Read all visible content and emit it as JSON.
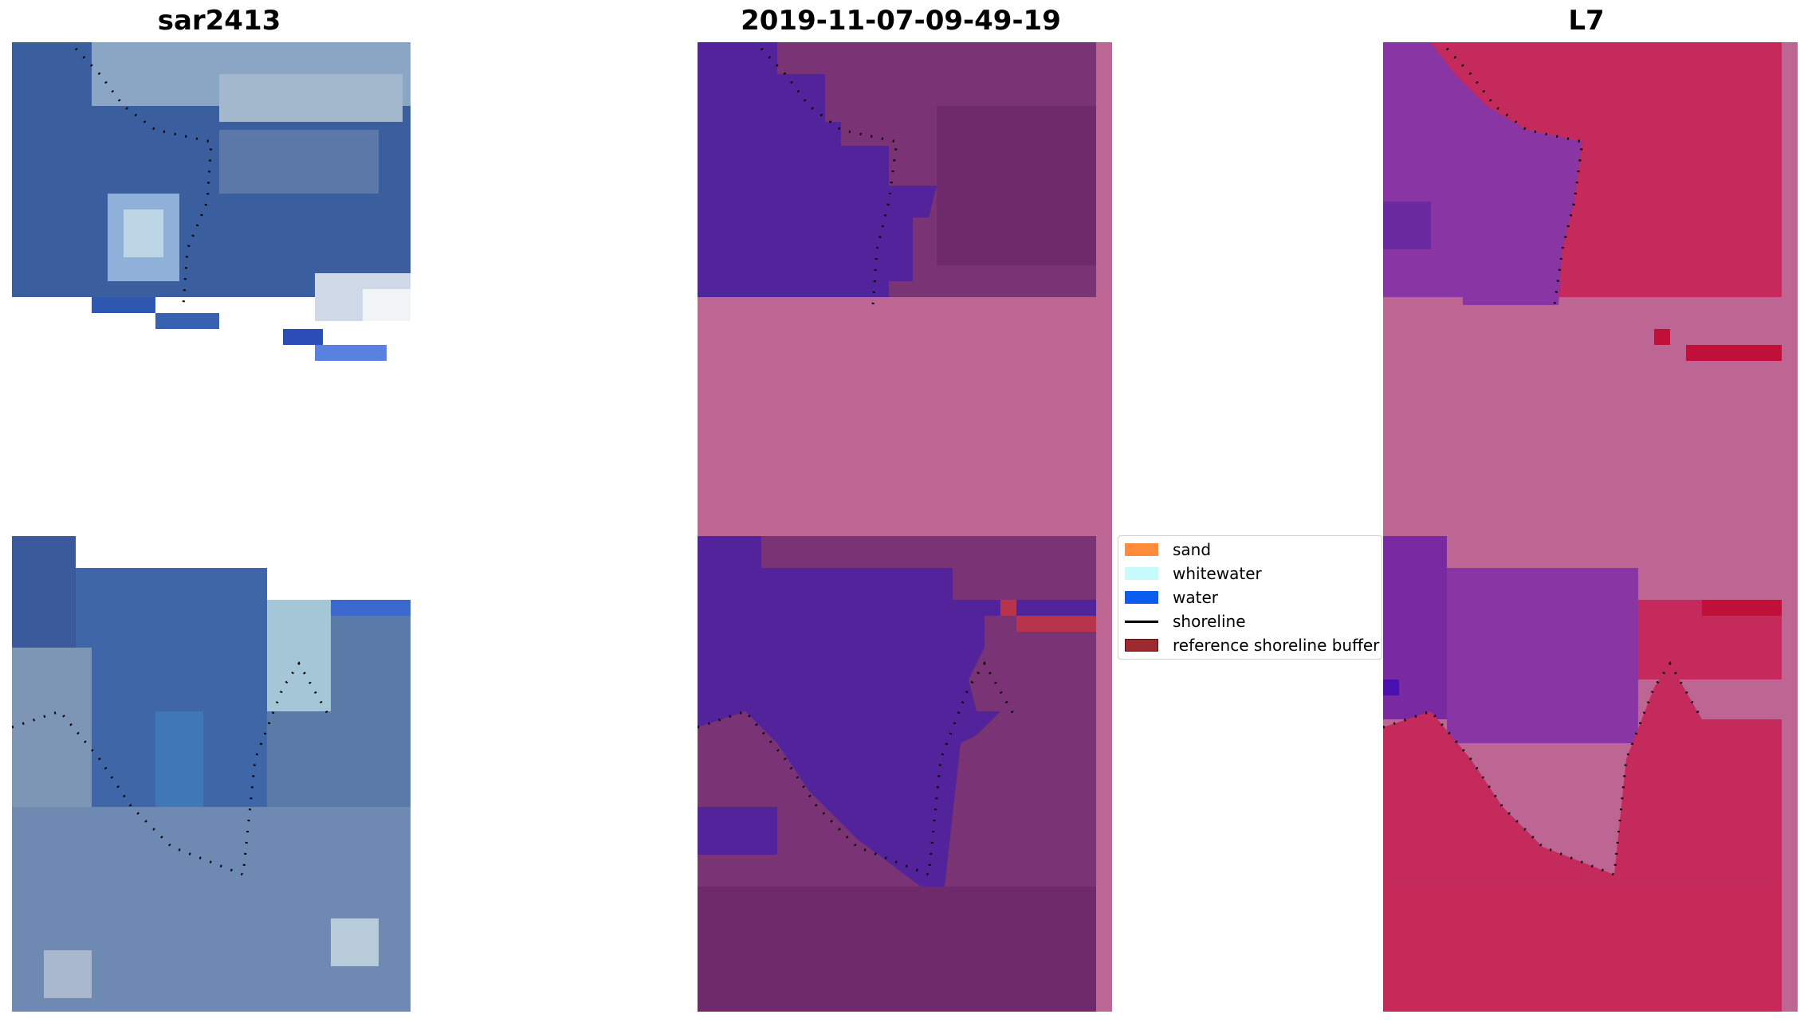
{
  "panels": {
    "left": {
      "title": "sar2413"
    },
    "middle": {
      "title": "2019-11-07-09-49-19"
    },
    "right": {
      "title": "L7"
    }
  },
  "legend": {
    "items": [
      {
        "label": "sand",
        "color": "#ff8c3a"
      },
      {
        "label": "whitewater",
        "color": "#c8fbfb"
      },
      {
        "label": "water",
        "color": "#0b5df0"
      },
      {
        "label": "shoreline",
        "color": "#000000"
      },
      {
        "label": "reference shoreline buffer",
        "color": "#9c2a2e"
      }
    ]
  },
  "colors": {
    "nodata_pink": "#bd6694",
    "water_purple": "#52239a",
    "land_maroon": "#7a3374",
    "buffer_red": "#b8344c",
    "rgb_blue": "#3a62a0",
    "ndwi_pink": "#c42a5c",
    "ndwi_purple": "#8a35a4"
  }
}
